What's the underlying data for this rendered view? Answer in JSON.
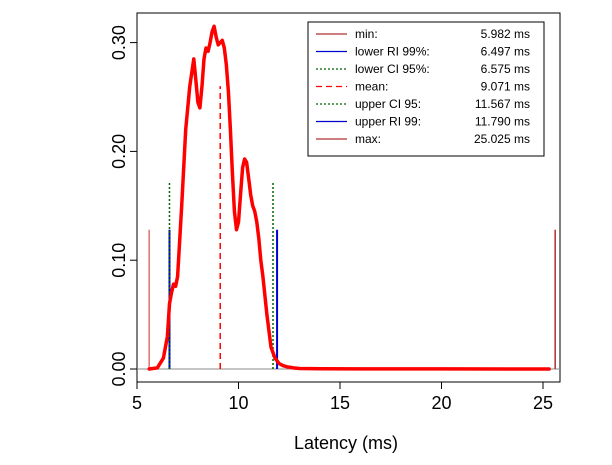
{
  "chart_data": {
    "type": "line",
    "title": "",
    "xlabel": "Latency (ms)",
    "ylabel": "",
    "xlim": [
      5,
      26
    ],
    "ylim": [
      0,
      0.33
    ],
    "x_ticks": [
      5,
      10,
      15,
      20,
      25
    ],
    "x_tick_labels": [
      "5",
      "10",
      "15",
      "20",
      "25"
    ],
    "y_ticks": [
      0.0,
      0.1,
      0.2,
      0.3
    ],
    "y_tick_labels": [
      "0.00",
      "0.10",
      "0.20",
      "0.30"
    ],
    "legend_position": "top-right",
    "series": [
      {
        "color": "#ff0000",
        "x": [
          5.6,
          6.0,
          6.3,
          6.5,
          6.6,
          6.7,
          6.8,
          6.9,
          7.0,
          7.2,
          7.4,
          7.6,
          7.8,
          7.9,
          8.0,
          8.1,
          8.2,
          8.3,
          8.4,
          8.5,
          8.6,
          8.7,
          8.8,
          8.9,
          9.0,
          9.1,
          9.2,
          9.3,
          9.4,
          9.5,
          9.6,
          9.7,
          9.8,
          9.9,
          10.0,
          10.1,
          10.2,
          10.3,
          10.4,
          10.5,
          10.6,
          10.7,
          10.8,
          10.9,
          11.0,
          11.1,
          11.2,
          11.4,
          11.6,
          11.8,
          12.0,
          12.2,
          12.4,
          12.7,
          13.0,
          14.0,
          16.0,
          20.0,
          25.3
        ],
        "values": [
          0.0,
          0.001,
          0.01,
          0.03,
          0.06,
          0.07,
          0.078,
          0.076,
          0.085,
          0.15,
          0.22,
          0.26,
          0.285,
          0.265,
          0.245,
          0.24,
          0.26,
          0.285,
          0.295,
          0.292,
          0.3,
          0.31,
          0.315,
          0.305,
          0.298,
          0.3,
          0.302,
          0.295,
          0.28,
          0.255,
          0.22,
          0.18,
          0.145,
          0.128,
          0.135,
          0.16,
          0.185,
          0.193,
          0.19,
          0.175,
          0.16,
          0.15,
          0.145,
          0.135,
          0.12,
          0.1,
          0.085,
          0.05,
          0.02,
          0.01,
          0.005,
          0.003,
          0.002,
          0.001,
          0.0005,
          0.0002,
          0.0001,
          5e-05,
          0.0
        ]
      }
    ],
    "vlines": [
      {
        "x": 5.6,
        "height": 0.128,
        "color": "#e07070",
        "style": "solid"
      },
      {
        "x": 6.6,
        "height": 0.128,
        "color": "#0000cc",
        "style": "solid"
      },
      {
        "x": 6.6,
        "height": 0.172,
        "color": "#006400",
        "style": "dotted"
      },
      {
        "x": 9.1,
        "height": 0.26,
        "color": "#ff0000",
        "style": "dashed"
      },
      {
        "x": 11.7,
        "height": 0.172,
        "color": "#006400",
        "style": "dotted"
      },
      {
        "x": 11.9,
        "height": 0.128,
        "color": "#0000cc",
        "style": "solid"
      },
      {
        "x": 25.6,
        "height": 0.128,
        "color": "#b03030",
        "style": "solid"
      }
    ],
    "legend": [
      {
        "label": "min:",
        "value": "5.982 ms",
        "color": "#b03030",
        "style": "solid"
      },
      {
        "label": "lower RI 99%:",
        "value": "6.497 ms",
        "color": "#0000cc",
        "style": "solid"
      },
      {
        "label": "lower CI 95%:",
        "value": "6.575 ms",
        "color": "#006400",
        "style": "dotted"
      },
      {
        "label": "mean:",
        "value": "9.071 ms",
        "color": "#ff0000",
        "style": "dashed"
      },
      {
        "label": "upper CI 95:",
        "value": "11.567 ms",
        "color": "#006400",
        "style": "dotted"
      },
      {
        "label": "upper RI 99:",
        "value": "11.790 ms",
        "color": "#0000cc",
        "style": "solid"
      },
      {
        "label": "max:",
        "value": "25.025 ms",
        "color": "#b03030",
        "style": "solid"
      }
    ]
  }
}
